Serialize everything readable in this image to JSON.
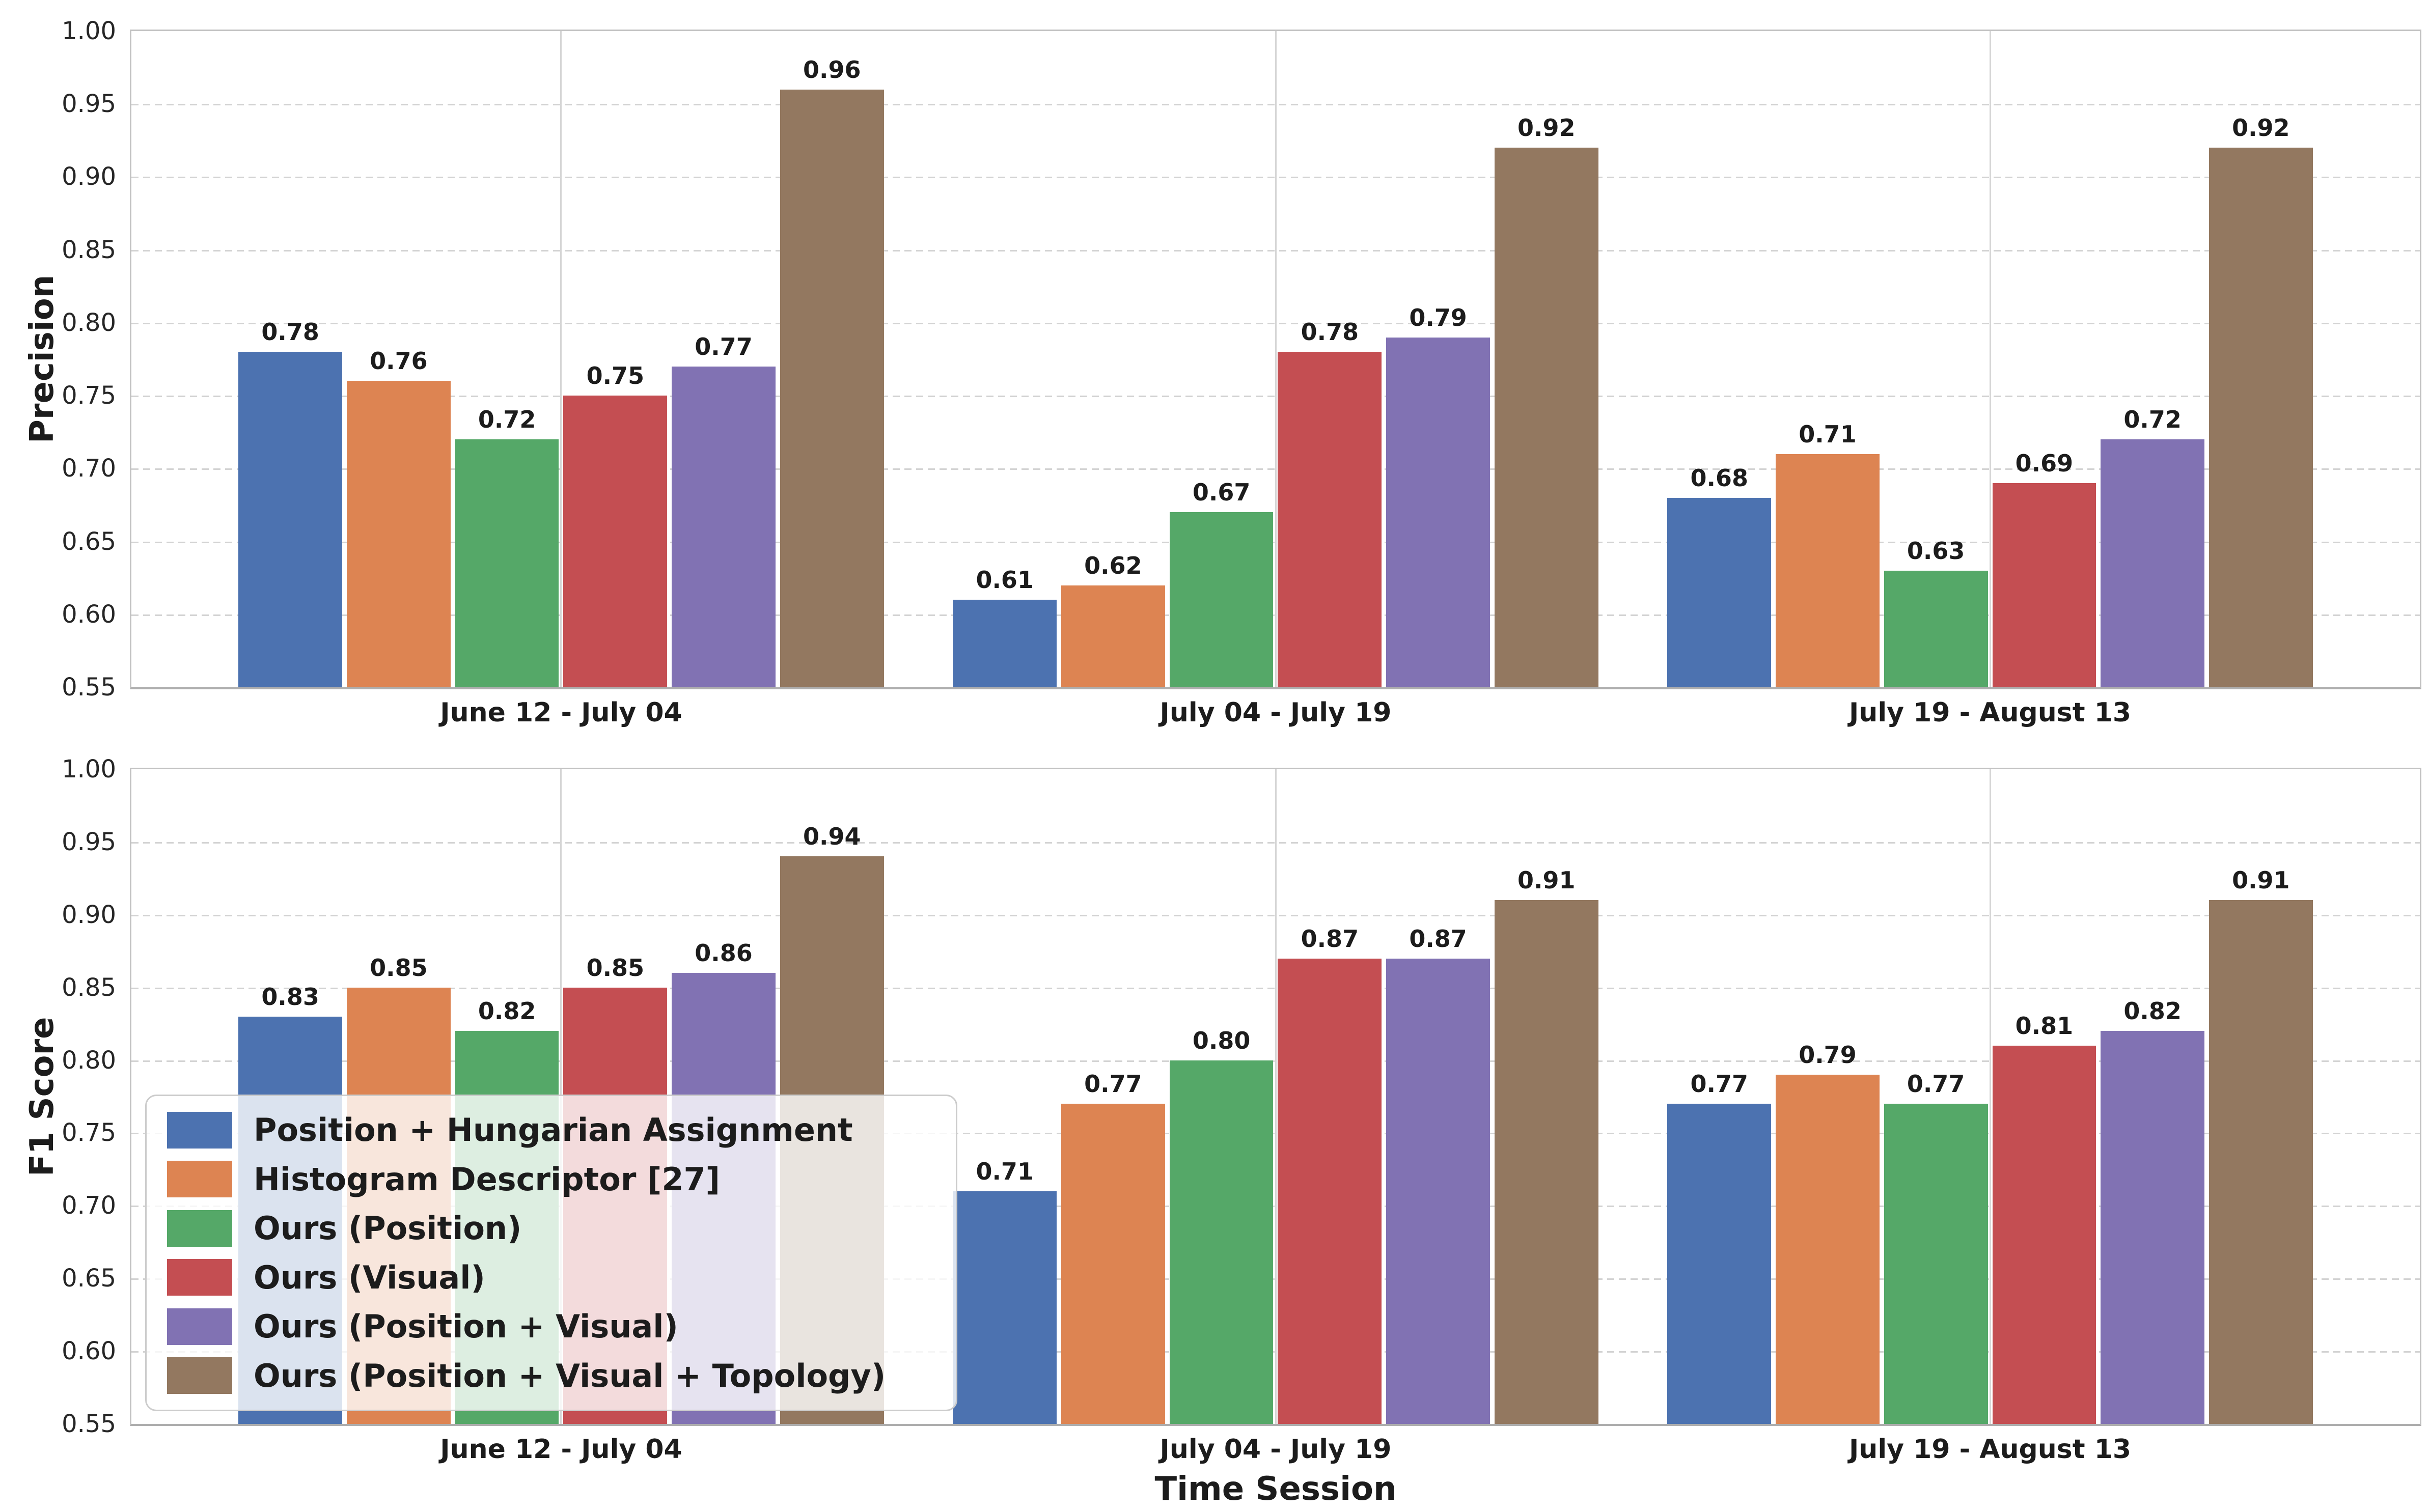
{
  "axis": {
    "ylim": [
      0.55,
      1.0
    ],
    "yticks": [
      1.0,
      0.95,
      0.9,
      0.85,
      0.8,
      0.75,
      0.7,
      0.65,
      0.6,
      0.55
    ],
    "x_axis_title": "Time Session"
  },
  "legend": {
    "entries": [
      {
        "label": "Position + Hungarian Assignment",
        "color": "#4C72B0"
      },
      {
        "label": "Histogram Descriptor [27]",
        "color": "#DD8452"
      },
      {
        "label": "Ours (Position)",
        "color": "#55A868"
      },
      {
        "label": "Ours (Visual)",
        "color": "#C44E52"
      },
      {
        "label": "Ours (Position + Visual)",
        "color": "#8172B3"
      },
      {
        "label": "Ours (Position + Visual + Topology)",
        "color": "#937860"
      }
    ]
  },
  "chart_data": [
    {
      "type": "bar",
      "title": "",
      "ylabel": "Precision",
      "xlabel": "",
      "ylim": [
        0.55,
        1.0
      ],
      "yticks": [
        1.0,
        0.95,
        0.9,
        0.85,
        0.8,
        0.75,
        0.7,
        0.65,
        0.6,
        0.55
      ],
      "grid": "horizontal dashed at y ticks, vertical solid at category centers",
      "legend_position": "none",
      "categories": [
        "June 12 - July 04",
        "July 04 - July 19",
        "July 19 - August 13"
      ],
      "series": [
        {
          "name": "Position + Hungarian Assignment",
          "color": "#4C72B0",
          "values": [
            0.78,
            0.61,
            0.68
          ]
        },
        {
          "name": "Histogram Descriptor [27]",
          "color": "#DD8452",
          "values": [
            0.76,
            0.62,
            0.71
          ]
        },
        {
          "name": "Ours (Position)",
          "color": "#55A868",
          "values": [
            0.72,
            0.67,
            0.63
          ]
        },
        {
          "name": "Ours (Visual)",
          "color": "#C44E52",
          "values": [
            0.75,
            0.78,
            0.69
          ]
        },
        {
          "name": "Ours (Position + Visual)",
          "color": "#8172B3",
          "values": [
            0.77,
            0.79,
            0.72
          ]
        },
        {
          "name": "Ours (Position + Visual + Topology)",
          "color": "#937860",
          "values": [
            0.96,
            0.92,
            0.92
          ]
        }
      ]
    },
    {
      "type": "bar",
      "title": "",
      "ylabel": "F1 Score",
      "xlabel": "Time Session",
      "ylim": [
        0.55,
        1.0
      ],
      "yticks": [
        1.0,
        0.95,
        0.9,
        0.85,
        0.8,
        0.75,
        0.7,
        0.65,
        0.6,
        0.55
      ],
      "grid": "horizontal dashed at y ticks, vertical solid at category centers",
      "legend_position": "lower left",
      "categories": [
        "June 12 - July 04",
        "July 04 - July 19",
        "July 19 - August 13"
      ],
      "series": [
        {
          "name": "Position + Hungarian Assignment",
          "color": "#4C72B0",
          "values": [
            0.83,
            0.71,
            0.77
          ]
        },
        {
          "name": "Histogram Descriptor [27]",
          "color": "#DD8452",
          "values": [
            0.85,
            0.77,
            0.79
          ]
        },
        {
          "name": "Ours (Position)",
          "color": "#55A868",
          "values": [
            0.82,
            0.8,
            0.77
          ]
        },
        {
          "name": "Ours (Visual)",
          "color": "#C44E52",
          "values": [
            0.85,
            0.87,
            0.81
          ]
        },
        {
          "name": "Ours (Position + Visual)",
          "color": "#8172B3",
          "values": [
            0.86,
            0.87,
            0.82
          ]
        },
        {
          "name": "Ours (Position + Visual + Topology)",
          "color": "#937860",
          "values": [
            0.94,
            0.91,
            0.91
          ]
        }
      ]
    }
  ]
}
